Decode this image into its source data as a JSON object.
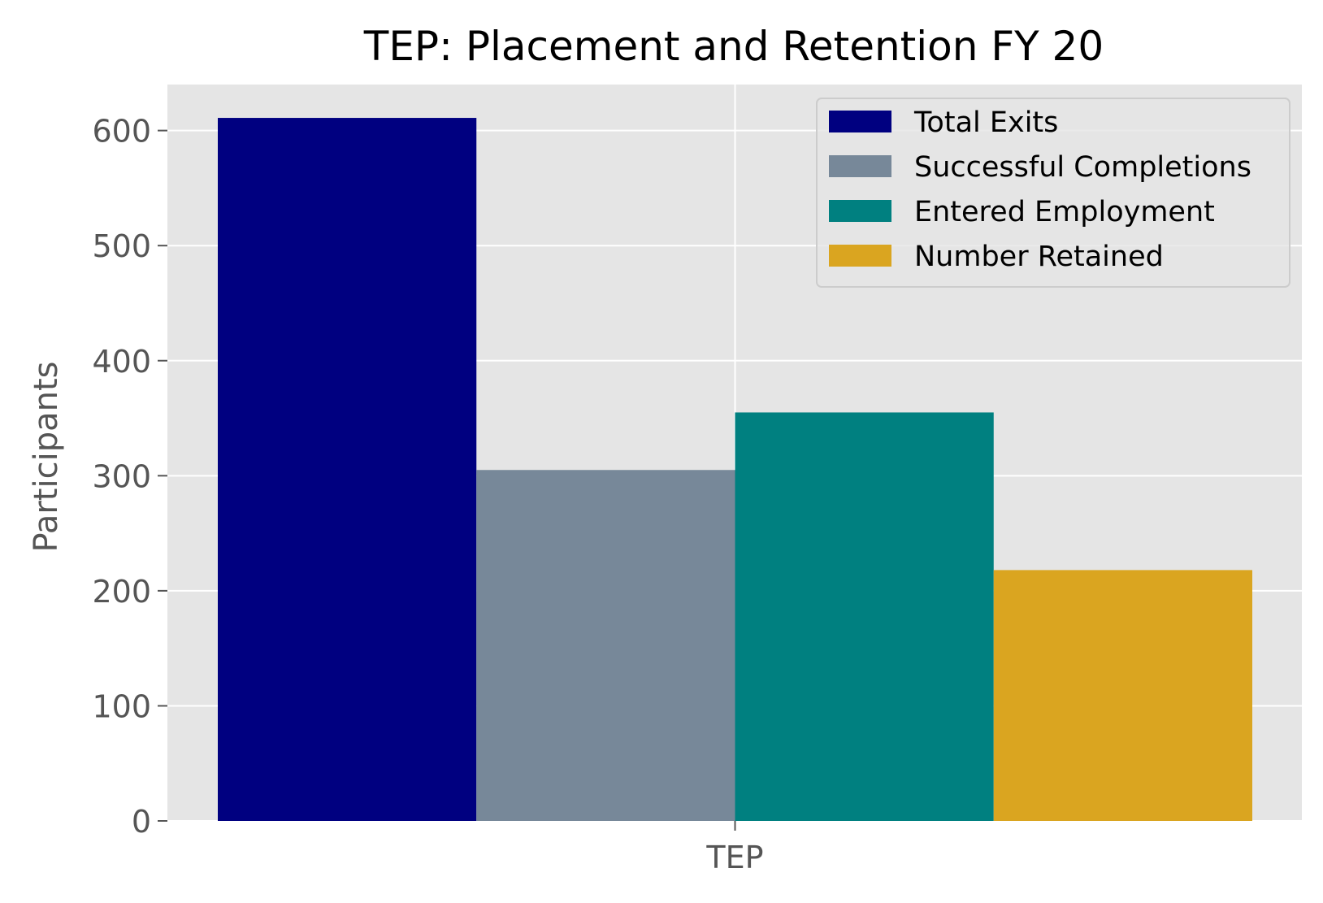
{
  "chart_data": {
    "type": "bar",
    "title": "TEP: Placement and Retention FY 20",
    "xlabel": "",
    "ylabel": "Participants",
    "categories": [
      "TEP"
    ],
    "ylim": [
      0,
      640
    ],
    "yticks": [
      0,
      100,
      200,
      300,
      400,
      500,
      600
    ],
    "grid": true,
    "legend_position": "top-right",
    "series": [
      {
        "name": "Total Exits",
        "values": [
          611
        ],
        "color": "#000080"
      },
      {
        "name": "Successful Completions",
        "values": [
          305
        ],
        "color": "#778899"
      },
      {
        "name": "Entered Employment",
        "values": [
          355
        ],
        "color": "#008080"
      },
      {
        "name": "Number Retained",
        "values": [
          218
        ],
        "color": "#DAA520"
      }
    ],
    "colors": {
      "plot_background": "#E5E5E5",
      "grid": "#FFFFFF",
      "tick_text": "#555555",
      "title_text": "#000000"
    }
  }
}
